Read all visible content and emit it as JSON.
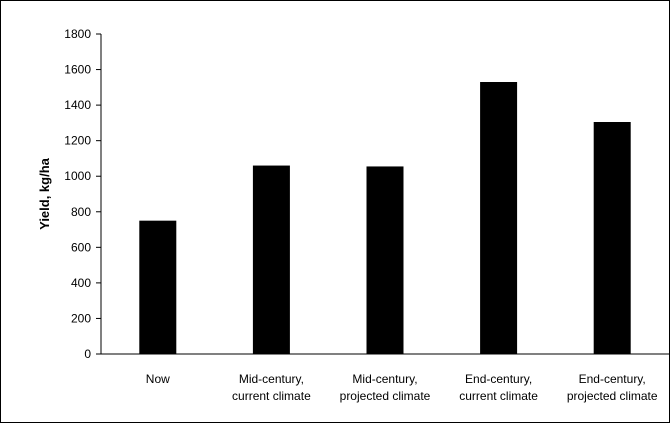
{
  "chart_data": {
    "type": "bar",
    "title": "",
    "xlabel": "",
    "ylabel": "Yield, kg/ha",
    "categories": [
      [
        "Now"
      ],
      [
        "Mid-century,",
        "current climate"
      ],
      [
        "Mid-century,",
        "projected climate"
      ],
      [
        "End-century,",
        "current climate"
      ],
      [
        "End-century,",
        "projected climate"
      ]
    ],
    "values": [
      750,
      1060,
      1055,
      1530,
      1305
    ],
    "ylim": [
      0,
      1800
    ],
    "yticks": [
      0,
      200,
      400,
      600,
      800,
      1000,
      1200,
      1400,
      1600,
      1800
    ],
    "grid": false,
    "legend": "none",
    "bar_color": "#000000"
  }
}
